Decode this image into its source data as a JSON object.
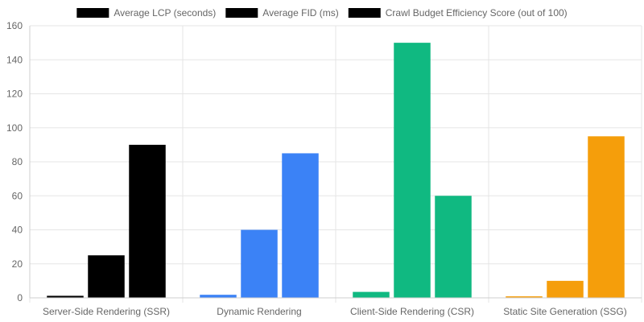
{
  "chart_data": {
    "type": "bar",
    "categories": [
      "Server-Side Rendering (SSR)",
      "Dynamic Rendering",
      "Client-Side Rendering (CSR)",
      "Static Site Generation (SSG)"
    ],
    "series": [
      {
        "name": "Average LCP (seconds)",
        "values": [
          1.2,
          1.8,
          3.5,
          0.9
        ]
      },
      {
        "name": "Average FID (ms)",
        "values": [
          25,
          40,
          150,
          10
        ]
      },
      {
        "name": "Crawl Budget Efficiency Score (out of 100)",
        "values": [
          90,
          85,
          60,
          95
        ]
      }
    ],
    "category_colors": [
      "#000000",
      "#3b82f6",
      "#10b981",
      "#f59e0b"
    ],
    "legend_swatch_color": "#000000",
    "ylim": [
      0,
      160
    ],
    "yticks": [
      0,
      20,
      40,
      60,
      80,
      100,
      120,
      140,
      160
    ],
    "grid": true,
    "legend_position": "top",
    "title": "",
    "xlabel": "",
    "ylabel": ""
  }
}
